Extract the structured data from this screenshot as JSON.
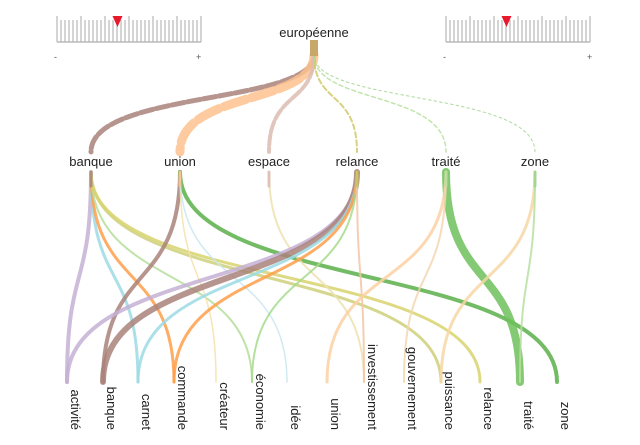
{
  "root": {
    "label": "européenne"
  },
  "mid_words": [
    {
      "label": "banque",
      "color": "#a9837a"
    },
    {
      "label": "union",
      "color": "#fdc28e"
    },
    {
      "label": "espace",
      "color": "#dcbcb1"
    },
    {
      "label": "relance",
      "color": "#c8c256"
    },
    {
      "label": "traité",
      "color": "#b7df9f"
    },
    {
      "label": "zone",
      "color": "#9fd38d"
    }
  ],
  "leaf_words": [
    {
      "label": "activité"
    },
    {
      "label": "banque"
    },
    {
      "label": "carnet"
    },
    {
      "label": "commande"
    },
    {
      "label": "créateur"
    },
    {
      "label": "économie"
    },
    {
      "label": "idée"
    },
    {
      "label": "union"
    },
    {
      "label": "investissement"
    },
    {
      "label": "gouvernement"
    },
    {
      "label": "puissance"
    },
    {
      "label": "relance"
    },
    {
      "label": "traité"
    },
    {
      "label": "zone"
    }
  ],
  "sliders": [
    {
      "minus": "-",
      "plus": "+",
      "level": 0.42
    },
    {
      "minus": "-",
      "plus": "+",
      "level": 0.42
    }
  ],
  "links_root": [
    {
      "to": 0,
      "color": "#a9837a",
      "w": 5,
      "dash": true
    },
    {
      "to": 1,
      "color": "#fdc28e",
      "w": 9,
      "dash": true
    },
    {
      "to": 2,
      "color": "#dcbcb1",
      "w": 4,
      "dash": true
    },
    {
      "to": 3,
      "color": "#d0c96a",
      "w": 2,
      "dash": true
    },
    {
      "to": 4,
      "color": "#b7df9f",
      "w": 1.5,
      "dash": true
    },
    {
      "to": 5,
      "color": "#9fd38d",
      "w": 1,
      "dash": true
    }
  ],
  "links_leaf": [
    {
      "from": 0,
      "to": 0,
      "color": "#c5b0d5",
      "w": 4
    },
    {
      "from": 0,
      "to": 2,
      "color": "#9edae5",
      "w": 3
    },
    {
      "from": 0,
      "to": 3,
      "color": "#ff9f4a",
      "w": 3
    },
    {
      "from": 0,
      "to": 5,
      "color": "#b5de9a",
      "w": 2
    },
    {
      "from": 0,
      "to": 10,
      "color": "#cfd07a",
      "w": 3
    },
    {
      "from": 0,
      "to": 11,
      "color": "#d8d36e",
      "w": 3
    },
    {
      "from": 1,
      "to": 1,
      "color": "#a9837a",
      "w": 4
    },
    {
      "from": 1,
      "to": 13,
      "color": "#5ab04a",
      "w": 4
    },
    {
      "from": 1,
      "to": 4,
      "color": "#f4e0a8",
      "w": 1.5
    },
    {
      "from": 1,
      "to": 6,
      "color": "#c9e6f0",
      "w": 1.5
    },
    {
      "from": 2,
      "to": 8,
      "color": "#ede1b0",
      "w": 2
    },
    {
      "from": 3,
      "to": 0,
      "color": "#c5b0d5",
      "w": 4
    },
    {
      "from": 3,
      "to": 1,
      "color": "#a9837a",
      "w": 6
    },
    {
      "from": 3,
      "to": 2,
      "color": "#9edae5",
      "w": 3
    },
    {
      "from": 3,
      "to": 3,
      "color": "#ff9f4a",
      "w": 3
    },
    {
      "from": 3,
      "to": 5,
      "color": "#a6db8c",
      "w": 2
    },
    {
      "from": 3,
      "to": 8,
      "color": "#f3c6a4",
      "w": 2
    },
    {
      "from": 4,
      "to": 12,
      "color": "#6ebf5a",
      "w": 8
    },
    {
      "from": 4,
      "to": 7,
      "color": "#fdd0a2",
      "w": 3
    },
    {
      "from": 4,
      "to": 9,
      "color": "#f3d6b0",
      "w": 2
    },
    {
      "from": 5,
      "to": 10,
      "color": "#f7d7a6",
      "w": 3
    },
    {
      "from": 5,
      "to": 12,
      "color": "#b7df9f",
      "w": 2
    }
  ]
}
